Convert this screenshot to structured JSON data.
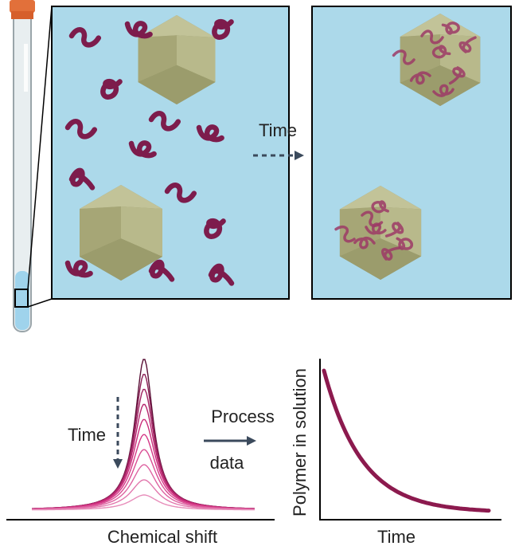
{
  "labels": {
    "time_top": "Time",
    "time_nmr": "Time",
    "process_1": "Process",
    "process_2": "data",
    "x_nmr": "Chemical shift",
    "y_decay": "Polymer in solution",
    "x_decay": "Time"
  }
}
